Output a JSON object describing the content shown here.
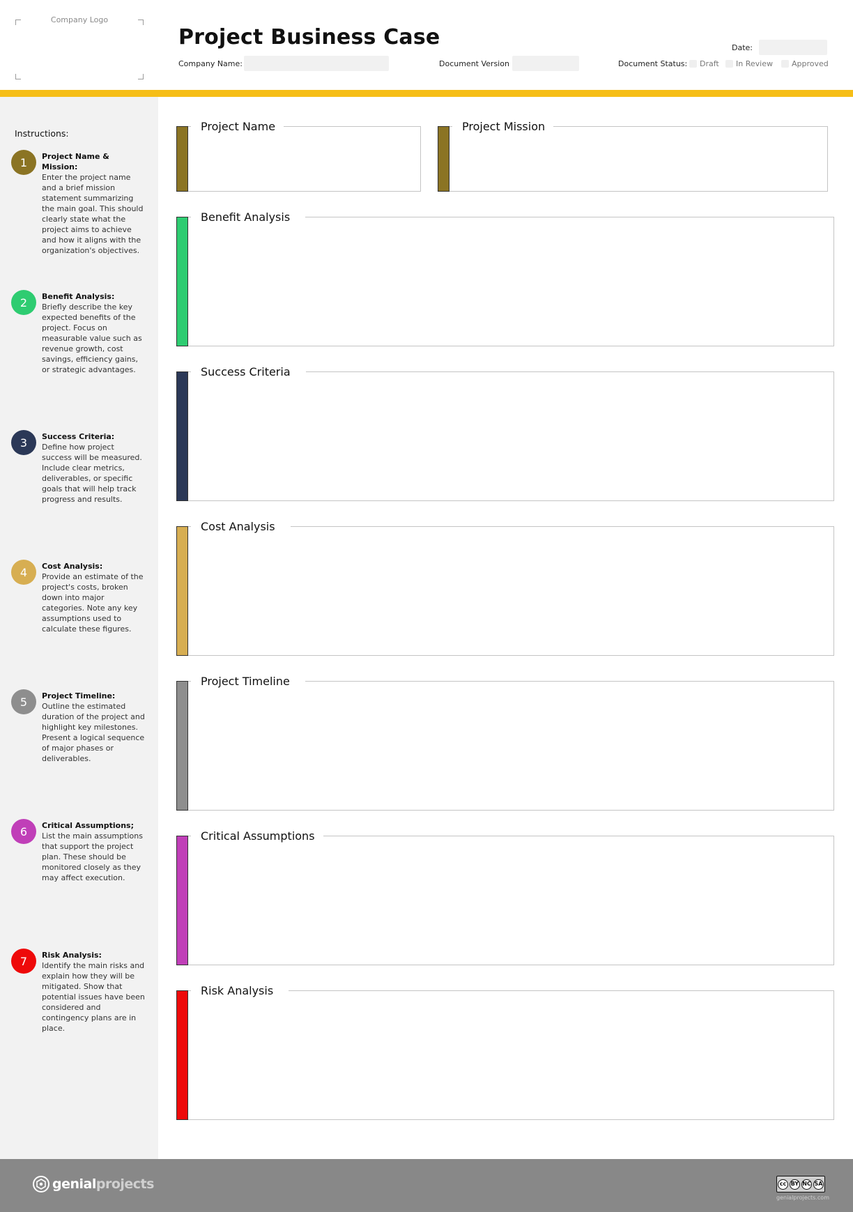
{
  "header": {
    "logo_placeholder": "Company Logo",
    "title": "Project Business Case",
    "company_name_label": "Company Name:",
    "document_version_label": "Document Version",
    "date_label": "Date:",
    "document_status_label": "Document Status:",
    "status_options": [
      "Draft",
      "In Review",
      "Approved"
    ]
  },
  "sidebar": {
    "title": "Instructions:",
    "steps": [
      {
        "number": "1",
        "heading": "Project Name & Mission:",
        "text": "Enter the project name and a brief mission statement summarizing the main goal. This should clearly state what the project aims to achieve and how it aligns with the organization's objectives.",
        "color": "#8b7424"
      },
      {
        "number": "2",
        "heading": "Benefit Analysis:",
        "text": "Briefly describe the key expected benefits of the project. Focus on measurable value such as revenue growth, cost savings, efficiency gains, or strategic advantages.",
        "color": "#2ecc71"
      },
      {
        "number": "3",
        "heading": "Success Criteria:",
        "text": "Define how project success will be measured. Include clear metrics, deliverables, or specific goals that will help track progress and results.",
        "color": "#2b3857"
      },
      {
        "number": "4",
        "heading": "Cost Analysis:",
        "text": "Provide an estimate of the project's costs, broken down into major categories. Note any key assumptions used to calculate these figures.",
        "color": "#d7ae52"
      },
      {
        "number": "5",
        "heading": "Project Timeline:",
        "text": "Outline the estimated duration of the project and highlight key milestones. Present a logical sequence of major phases or deliverables.",
        "color": "#8e8e8e"
      },
      {
        "number": "6",
        "heading": "Critical Assumptions;",
        "text": "List the main assumptions that support the project plan. These should be monitored closely as they may affect execution.",
        "color": "#c03fb8"
      },
      {
        "number": "7",
        "heading": "Risk Analysis:",
        "text": "Identify the main risks and explain how they will be mitigated. Show that potential issues have been considered and contingency plans are in place.",
        "color": "#ee0a0a"
      }
    ]
  },
  "sections": {
    "project_name": {
      "title": "Project Name",
      "color": "#8b7424"
    },
    "project_mission": {
      "title": "Project Mission",
      "color": "#8b7424"
    },
    "benefit_analysis": {
      "title": "Benefit Analysis",
      "color": "#2ecc71"
    },
    "success_criteria": {
      "title": "Success Criteria",
      "color": "#2b3857"
    },
    "cost_analysis": {
      "title": "Cost Analysis",
      "color": "#d7ae52"
    },
    "project_timeline": {
      "title": "Project Timeline",
      "color": "#8e8e8e"
    },
    "critical_assumptions": {
      "title": "Critical Assumptions",
      "color": "#c03fb8"
    },
    "risk_analysis": {
      "title": "Risk Analysis",
      "color": "#ee0a0a"
    }
  },
  "footer": {
    "brand_bold": "genial",
    "brand_light": "projects",
    "license_labels": [
      "BY",
      "NC",
      "SA"
    ],
    "site": "genialprojects.com"
  }
}
